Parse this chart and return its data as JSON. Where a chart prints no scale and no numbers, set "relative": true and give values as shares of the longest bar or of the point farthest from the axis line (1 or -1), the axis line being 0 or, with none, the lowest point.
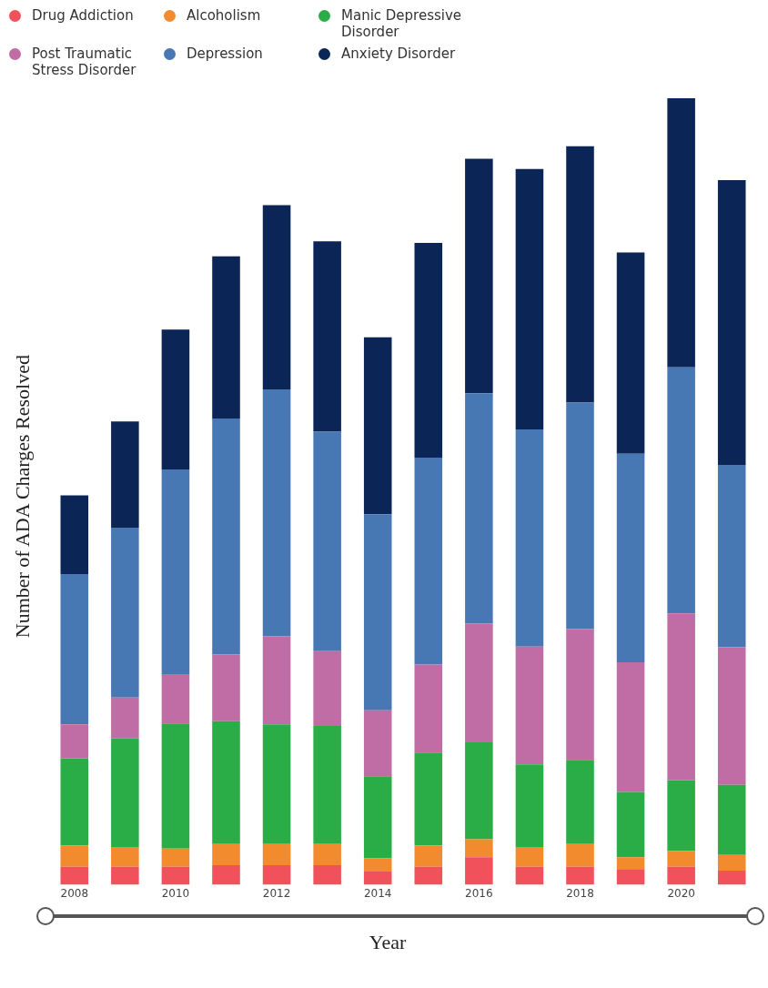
{
  "chart_data": {
    "type": "bar",
    "relative": true,
    "stacked": true,
    "xlabel": "Year",
    "ylabel": "Number of ADA Charges Resolved",
    "categories": [
      "2008",
      null,
      "2010",
      null,
      "2012",
      null,
      "2014",
      null,
      "2016",
      null,
      "2018",
      null,
      "2020",
      null
    ],
    "legend": "top left",
    "grid": false,
    "series": [
      {
        "name": "Drug Addiction",
        "color": "#f0515a",
        "values": [
          0.023,
          0.023,
          0.023,
          0.025,
          0.025,
          0.025,
          0.017,
          0.023,
          0.035,
          0.023,
          0.023,
          0.02,
          0.023,
          0.018
        ]
      },
      {
        "name": "Alcoholism",
        "color": "#f28a2e",
        "values": [
          0.027,
          0.025,
          0.023,
          0.027,
          0.027,
          0.027,
          0.017,
          0.027,
          0.023,
          0.025,
          0.029,
          0.015,
          0.02,
          0.02
        ]
      },
      {
        "name": "Manic Depressive Disorder",
        "color": "#2aad46",
        "values": [
          0.111,
          0.138,
          0.159,
          0.156,
          0.152,
          0.15,
          0.104,
          0.118,
          0.123,
          0.105,
          0.107,
          0.083,
          0.09,
          0.089
        ]
      },
      {
        "name": "Post Traumatic Stress Disorder",
        "color": "#c06ca5",
        "values": [
          0.043,
          0.052,
          0.063,
          0.085,
          0.112,
          0.095,
          0.084,
          0.112,
          0.151,
          0.15,
          0.166,
          0.165,
          0.212,
          0.175
        ]
      },
      {
        "name": "Depression",
        "color": "#4878b4",
        "values": [
          0.191,
          0.216,
          0.26,
          0.3,
          0.314,
          0.279,
          0.249,
          0.263,
          0.293,
          0.276,
          0.288,
          0.265,
          0.313,
          0.232
        ]
      },
      {
        "name": "Anxiety Disorder",
        "color": "#0b2656",
        "values": [
          0.1,
          0.135,
          0.178,
          0.206,
          0.234,
          0.242,
          0.225,
          0.273,
          0.298,
          0.331,
          0.326,
          0.256,
          0.342,
          0.362
        ]
      }
    ]
  }
}
